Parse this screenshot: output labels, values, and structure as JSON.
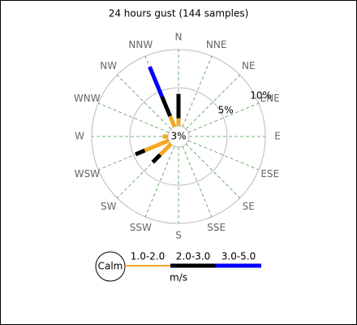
{
  "chart_data": {
    "type": "windrose",
    "title": "24 hours gust (144 samples)",
    "directions": [
      "N",
      "NNE",
      "NE",
      "ENE",
      "E",
      "ESE",
      "SE",
      "SSE",
      "S",
      "SSW",
      "SW",
      "WSW",
      "W",
      "WNW",
      "NW",
      "NNW"
    ],
    "series": [
      {
        "name": "1.0-2.0",
        "color": "#f5a623",
        "values": [
          1,
          0,
          0,
          0,
          0,
          0,
          0,
          0,
          0,
          0,
          2,
          3.4,
          0.7,
          0,
          0,
          1.5
        ]
      },
      {
        "name": "2.0-3.0",
        "color": "#000000",
        "values": [
          3.2,
          0,
          0,
          0,
          0,
          0,
          0,
          0,
          0,
          0,
          1.4,
          1.3,
          0,
          0,
          0,
          2.8
        ]
      },
      {
        "name": "3.0-5.0",
        "color": "#0000ff",
        "values": [
          0,
          0,
          0,
          0,
          0,
          0,
          0,
          0,
          0,
          0,
          0,
          0,
          0,
          0,
          0,
          4.2
        ]
      }
    ],
    "calm": {
      "value": 3,
      "label": "3%"
    },
    "calm_legend": "Calm",
    "legend_unit": "m/s",
    "rlim": [
      0,
      10
    ],
    "rticks": [
      {
        "value": 5,
        "label": "5%"
      },
      {
        "value": 10,
        "label": "10%"
      }
    ]
  }
}
